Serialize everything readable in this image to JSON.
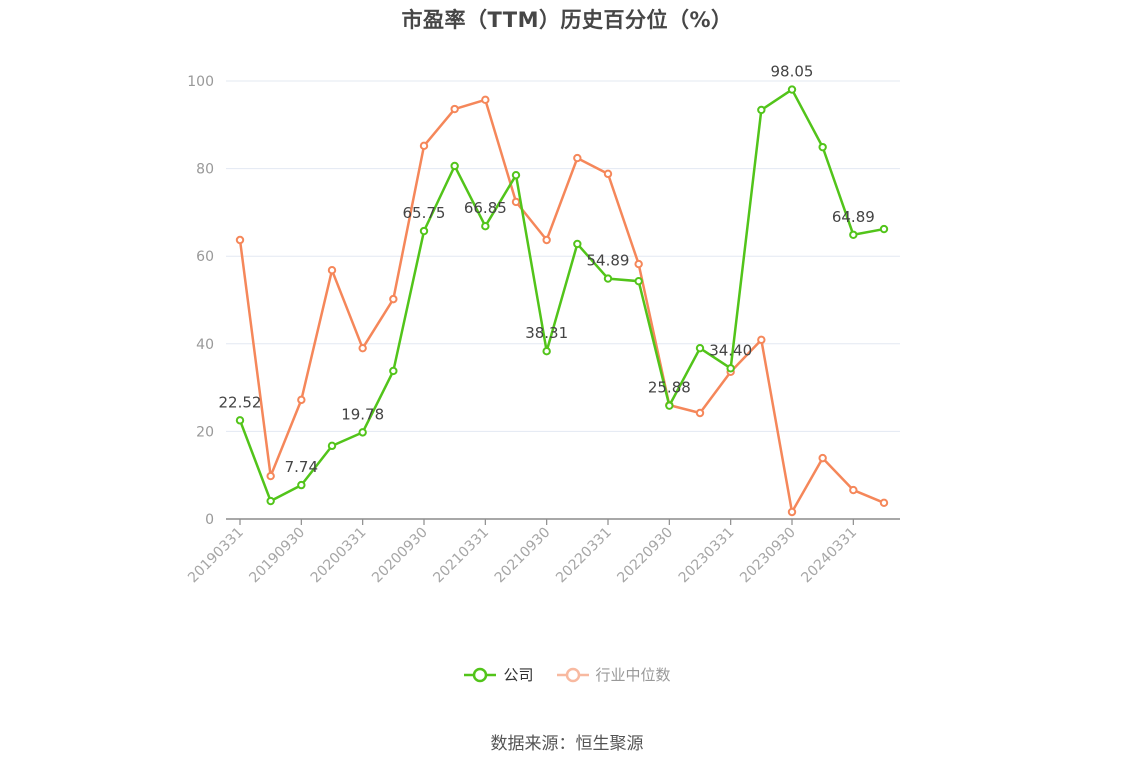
{
  "title": "市盈率（TTM）历史百分位（%）",
  "legend": {
    "company": "公司",
    "industry": "行业中位数"
  },
  "source": "数据来源：恒生聚源",
  "colors": {
    "company": "#52c41a",
    "industry": "#f5875a",
    "industry_legend": "#f8b9a0",
    "grid": "#e3e8f2",
    "axis": "#8c8c8c"
  },
  "chart_data": {
    "type": "line",
    "title": "市盈率（TTM）历史百分位（%）",
    "xlabel": "",
    "ylabel": "",
    "ylim": [
      0,
      100
    ],
    "yticks": [
      0,
      20,
      40,
      60,
      80,
      100
    ],
    "grid": true,
    "legend_position": "bottom",
    "x_tick_labels": [
      "20190331",
      "20190930",
      "20200331",
      "20200930",
      "20210331",
      "20210930",
      "20220331",
      "20220930",
      "20230331",
      "20230930",
      "20240331"
    ],
    "x": [
      "20190331",
      "20190630",
      "20190930",
      "20191231",
      "20200331",
      "20200630",
      "20200930",
      "20201231",
      "20210331",
      "20210630",
      "20210930",
      "20211231",
      "20220331",
      "20220630",
      "20220930",
      "20221231",
      "20230331",
      "20230630",
      "20230930",
      "20231231",
      "20240331",
      "20240630"
    ],
    "series": [
      {
        "name": "公司",
        "values": [
          22.52,
          4.1,
          7.74,
          16.7,
          19.78,
          33.8,
          65.75,
          80.6,
          66.85,
          78.5,
          38.31,
          62.8,
          54.89,
          54.3,
          25.88,
          39.0,
          34.4,
          93.4,
          98.05,
          84.9,
          64.89,
          66.2
        ],
        "labeled_points": {
          "0": "22.52",
          "2": "7.74",
          "4": "19.78",
          "6": "65.75",
          "8": "66.85",
          "10": "38.31",
          "12": "54.89",
          "14": "25.88",
          "16": "34.40",
          "18": "98.05",
          "20": "64.89"
        }
      },
      {
        "name": "行业中位数",
        "values": [
          63.7,
          9.8,
          27.2,
          56.8,
          39.0,
          50.2,
          85.2,
          93.6,
          95.7,
          72.4,
          63.7,
          82.4,
          78.8,
          58.2,
          26.0,
          24.2,
          33.6,
          40.9,
          1.6,
          13.9,
          6.6,
          3.7
        ]
      }
    ]
  }
}
